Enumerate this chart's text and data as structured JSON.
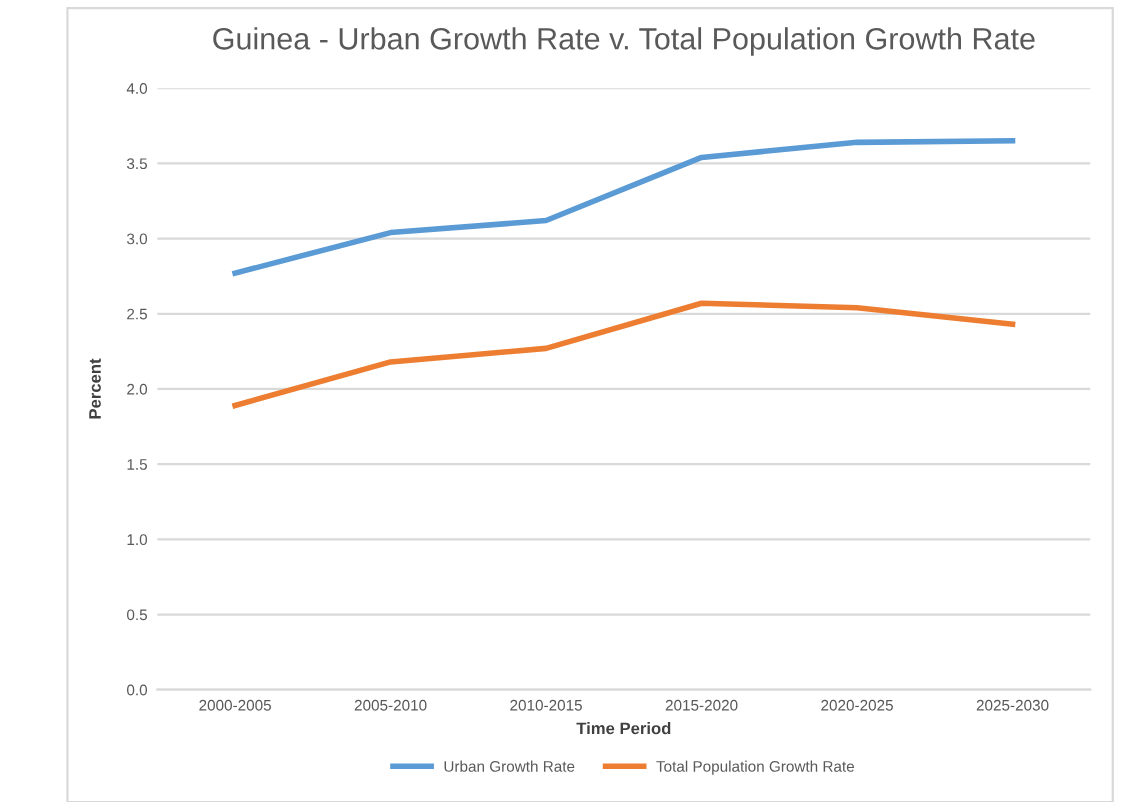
{
  "chart_data": {
    "type": "line",
    "title": "Guinea - Urban Growth Rate v. Total Population Growth Rate",
    "xlabel": "Time Period",
    "ylabel": "Percent",
    "categories": [
      "2000-2005",
      "2005-2010",
      "2010-2015",
      "2015-2020",
      "2020-2025",
      "2025-2030"
    ],
    "series": [
      {
        "name": "Urban Growth Rate",
        "color": "#5b9bd5",
        "values": [
          2.77,
          3.04,
          3.12,
          3.54,
          3.64,
          3.65
        ]
      },
      {
        "name": "Total Population Growth Rate",
        "color": "#ed7d31",
        "values": [
          1.89,
          2.18,
          2.27,
          2.57,
          2.54,
          2.43
        ]
      }
    ],
    "ylim": [
      0,
      4
    ],
    "yticks": [
      {
        "value": 0,
        "label": "0.0"
      },
      {
        "value": 0.5,
        "label": "0.5"
      },
      {
        "value": 1,
        "label": "1.0"
      },
      {
        "value": 1.5,
        "label": "1.5"
      },
      {
        "value": 2,
        "label": "2.0"
      },
      {
        "value": 2.5,
        "label": "2.5"
      },
      {
        "value": 3,
        "label": "3.0"
      },
      {
        "value": 3.5,
        "label": "3.5"
      },
      {
        "value": 4,
        "label": "4.0"
      }
    ],
    "grid": "y",
    "legend": "bottom",
    "marker": "none",
    "line_style": "solid"
  }
}
